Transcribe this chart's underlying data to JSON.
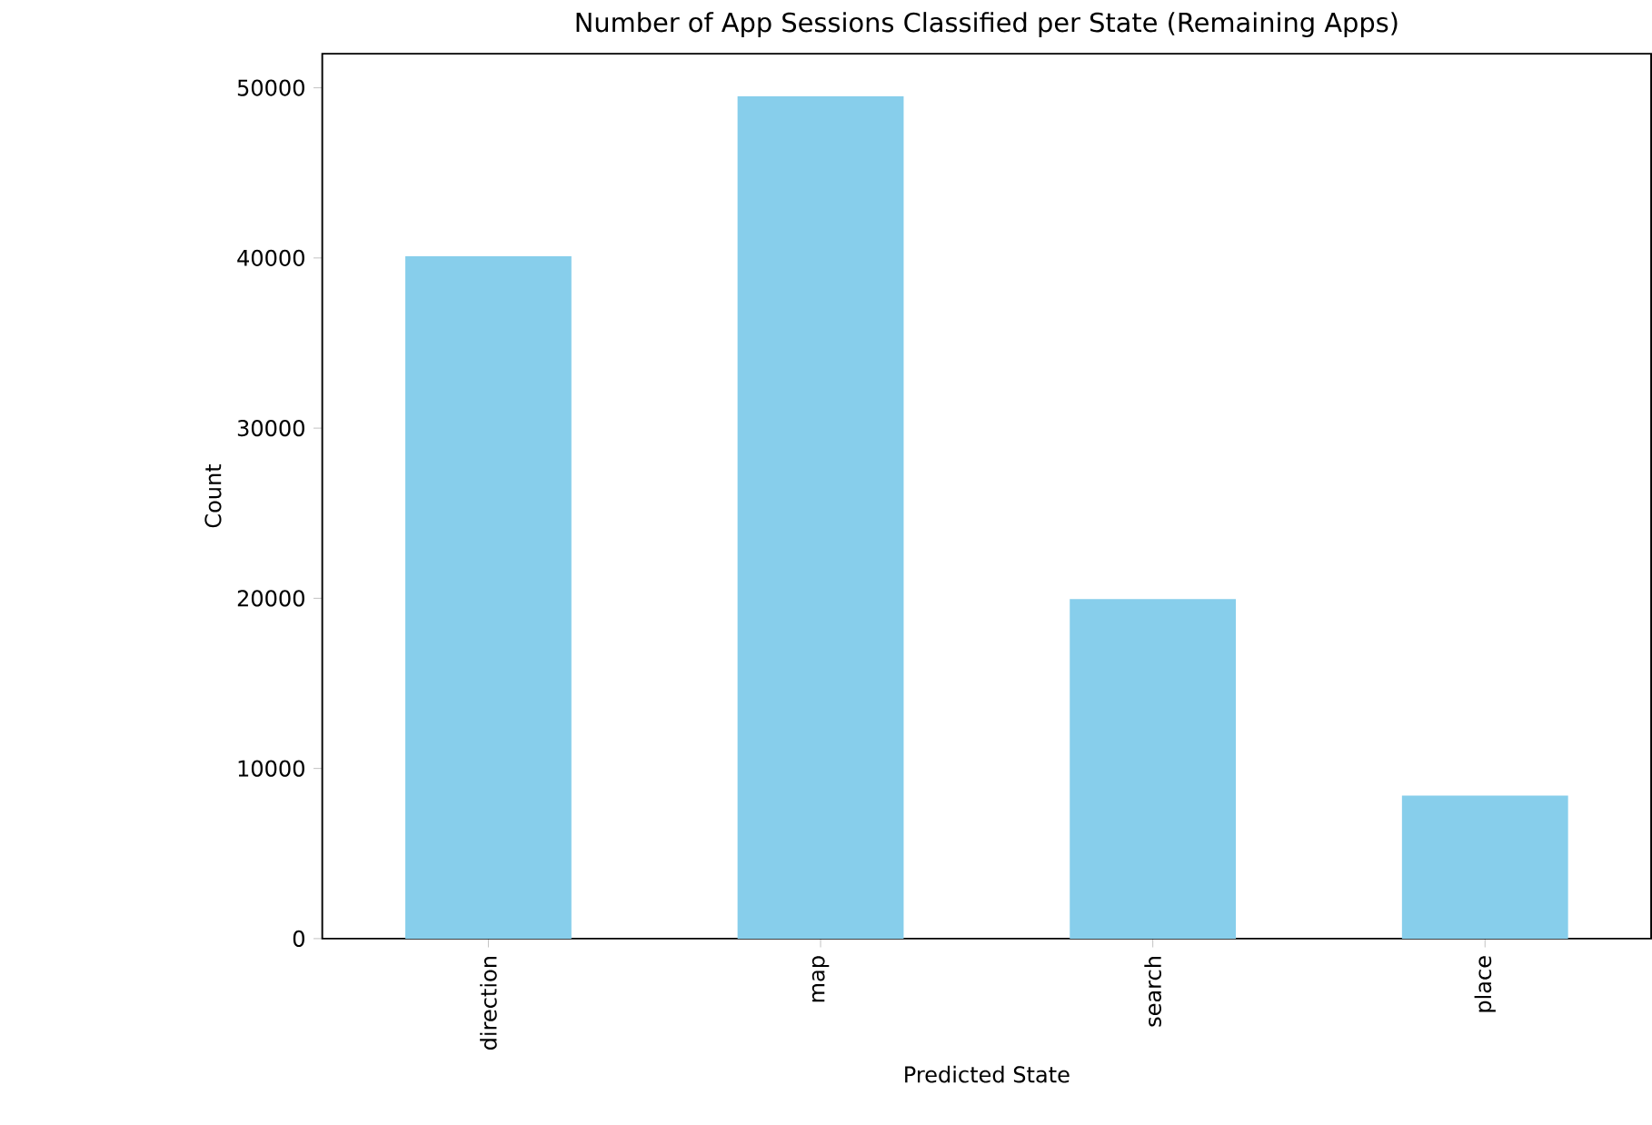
{
  "chart_data": {
    "type": "bar",
    "title": "Number of App Sessions Classified per State (Remaining Apps)",
    "xlabel": "Predicted State",
    "ylabel": "Count",
    "categories": [
      "direction",
      "map",
      "search",
      "place"
    ],
    "values": [
      40100,
      49500,
      19950,
      8400
    ],
    "color": "#87ceeb",
    "ylim": [
      0,
      52000
    ],
    "yticks": [
      0,
      10000,
      20000,
      30000,
      40000,
      50000
    ]
  }
}
